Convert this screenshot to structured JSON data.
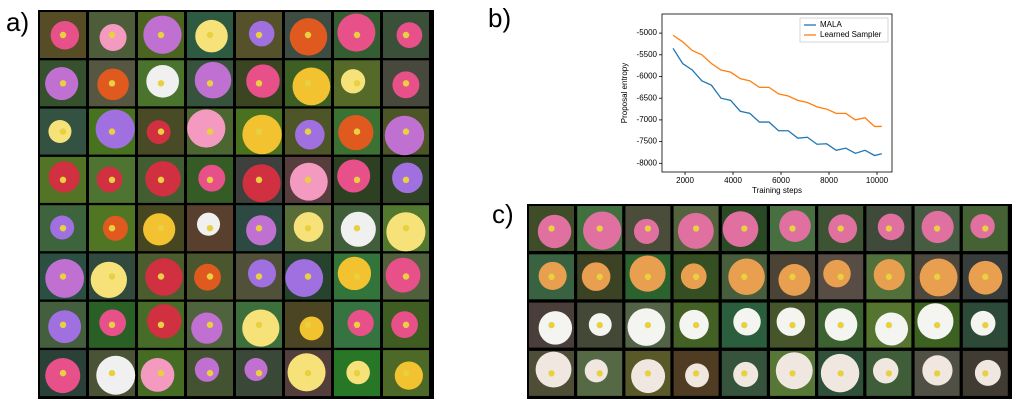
{
  "panel_labels": [
    "a)",
    "b)",
    "c)"
  ],
  "chart_data": {
    "type": "line",
    "x_label": "Training steps",
    "y_label": "Proposal entropy",
    "x": [
      1500,
      1900,
      2300,
      2700,
      3100,
      3500,
      3900,
      4300,
      4700,
      5100,
      5500,
      5900,
      6300,
      6700,
      7100,
      7500,
      7900,
      8300,
      8700,
      9100,
      9500,
      9900,
      10200
    ],
    "series": [
      {
        "name": "MALA",
        "color": "#1f77b4",
        "values": [
          -5350,
          -5700,
          -5850,
          -6100,
          -6200,
          -6500,
          -6550,
          -6800,
          -6850,
          -7050,
          -7050,
          -7250,
          -7250,
          -7420,
          -7400,
          -7560,
          -7550,
          -7700,
          -7650,
          -7770,
          -7700,
          -7820,
          -7780
        ]
      },
      {
        "name": "Learned Sampler",
        "color": "#ff7f0e",
        "values": [
          -5050,
          -5200,
          -5400,
          -5500,
          -5700,
          -5850,
          -5900,
          -6050,
          -6100,
          -6250,
          -6250,
          -6400,
          -6450,
          -6550,
          -6600,
          -6700,
          -6750,
          -6850,
          -6850,
          -7000,
          -6950,
          -7150,
          -7150
        ]
      }
    ],
    "xlim": [
      1040,
      10625
    ],
    "xticks": [
      2000,
      4000,
      6000,
      8000,
      10000
    ],
    "ylim": [
      -8200,
      -4560
    ],
    "yticks": [
      -8000,
      -7500,
      -7000,
      -6500,
      -6000,
      -5500,
      -5000
    ],
    "legend": "upper right"
  }
}
